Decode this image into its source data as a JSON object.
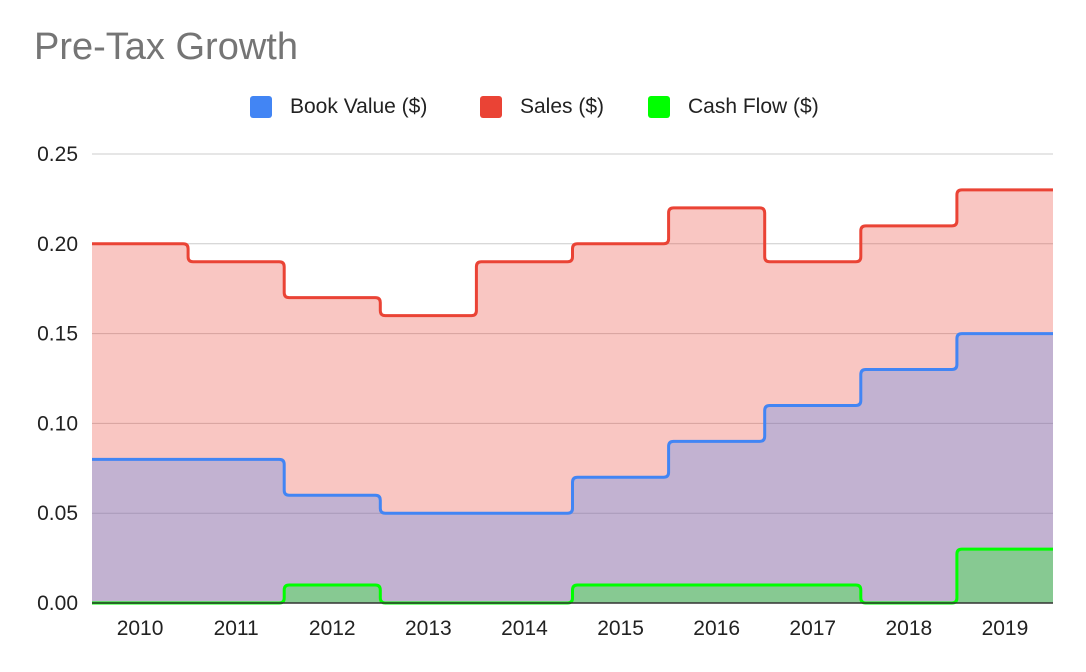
{
  "chart_data": {
    "type": "area",
    "step": true,
    "title": "Pre-Tax Growth",
    "xlabel": "",
    "ylabel": "",
    "categories": [
      "2010",
      "2011",
      "2012",
      "2013",
      "2014",
      "2015",
      "2016",
      "2017",
      "2018",
      "2019"
    ],
    "ylim": [
      0,
      0.25
    ],
    "yticks": [
      "0.00",
      "0.05",
      "0.10",
      "0.15",
      "0.20",
      "0.25"
    ],
    "grid": true,
    "legend_position": "top",
    "series": [
      {
        "name": "Book Value ($)",
        "color": "#4285f4",
        "values": [
          0.08,
          0.08,
          0.06,
          0.05,
          0.05,
          0.07,
          0.09,
          0.11,
          0.13,
          0.15
        ]
      },
      {
        "name": "Sales ($)",
        "color": "#ea4335",
        "values": [
          0.2,
          0.19,
          0.17,
          0.16,
          0.19,
          0.2,
          0.22,
          0.19,
          0.21,
          0.23
        ]
      },
      {
        "name": "Cash Flow ($)",
        "color": "#00ff00",
        "values": [
          0.0,
          0.0,
          0.01,
          0.0,
          0.0,
          0.01,
          0.01,
          0.01,
          0.0,
          0.03
        ]
      }
    ]
  }
}
